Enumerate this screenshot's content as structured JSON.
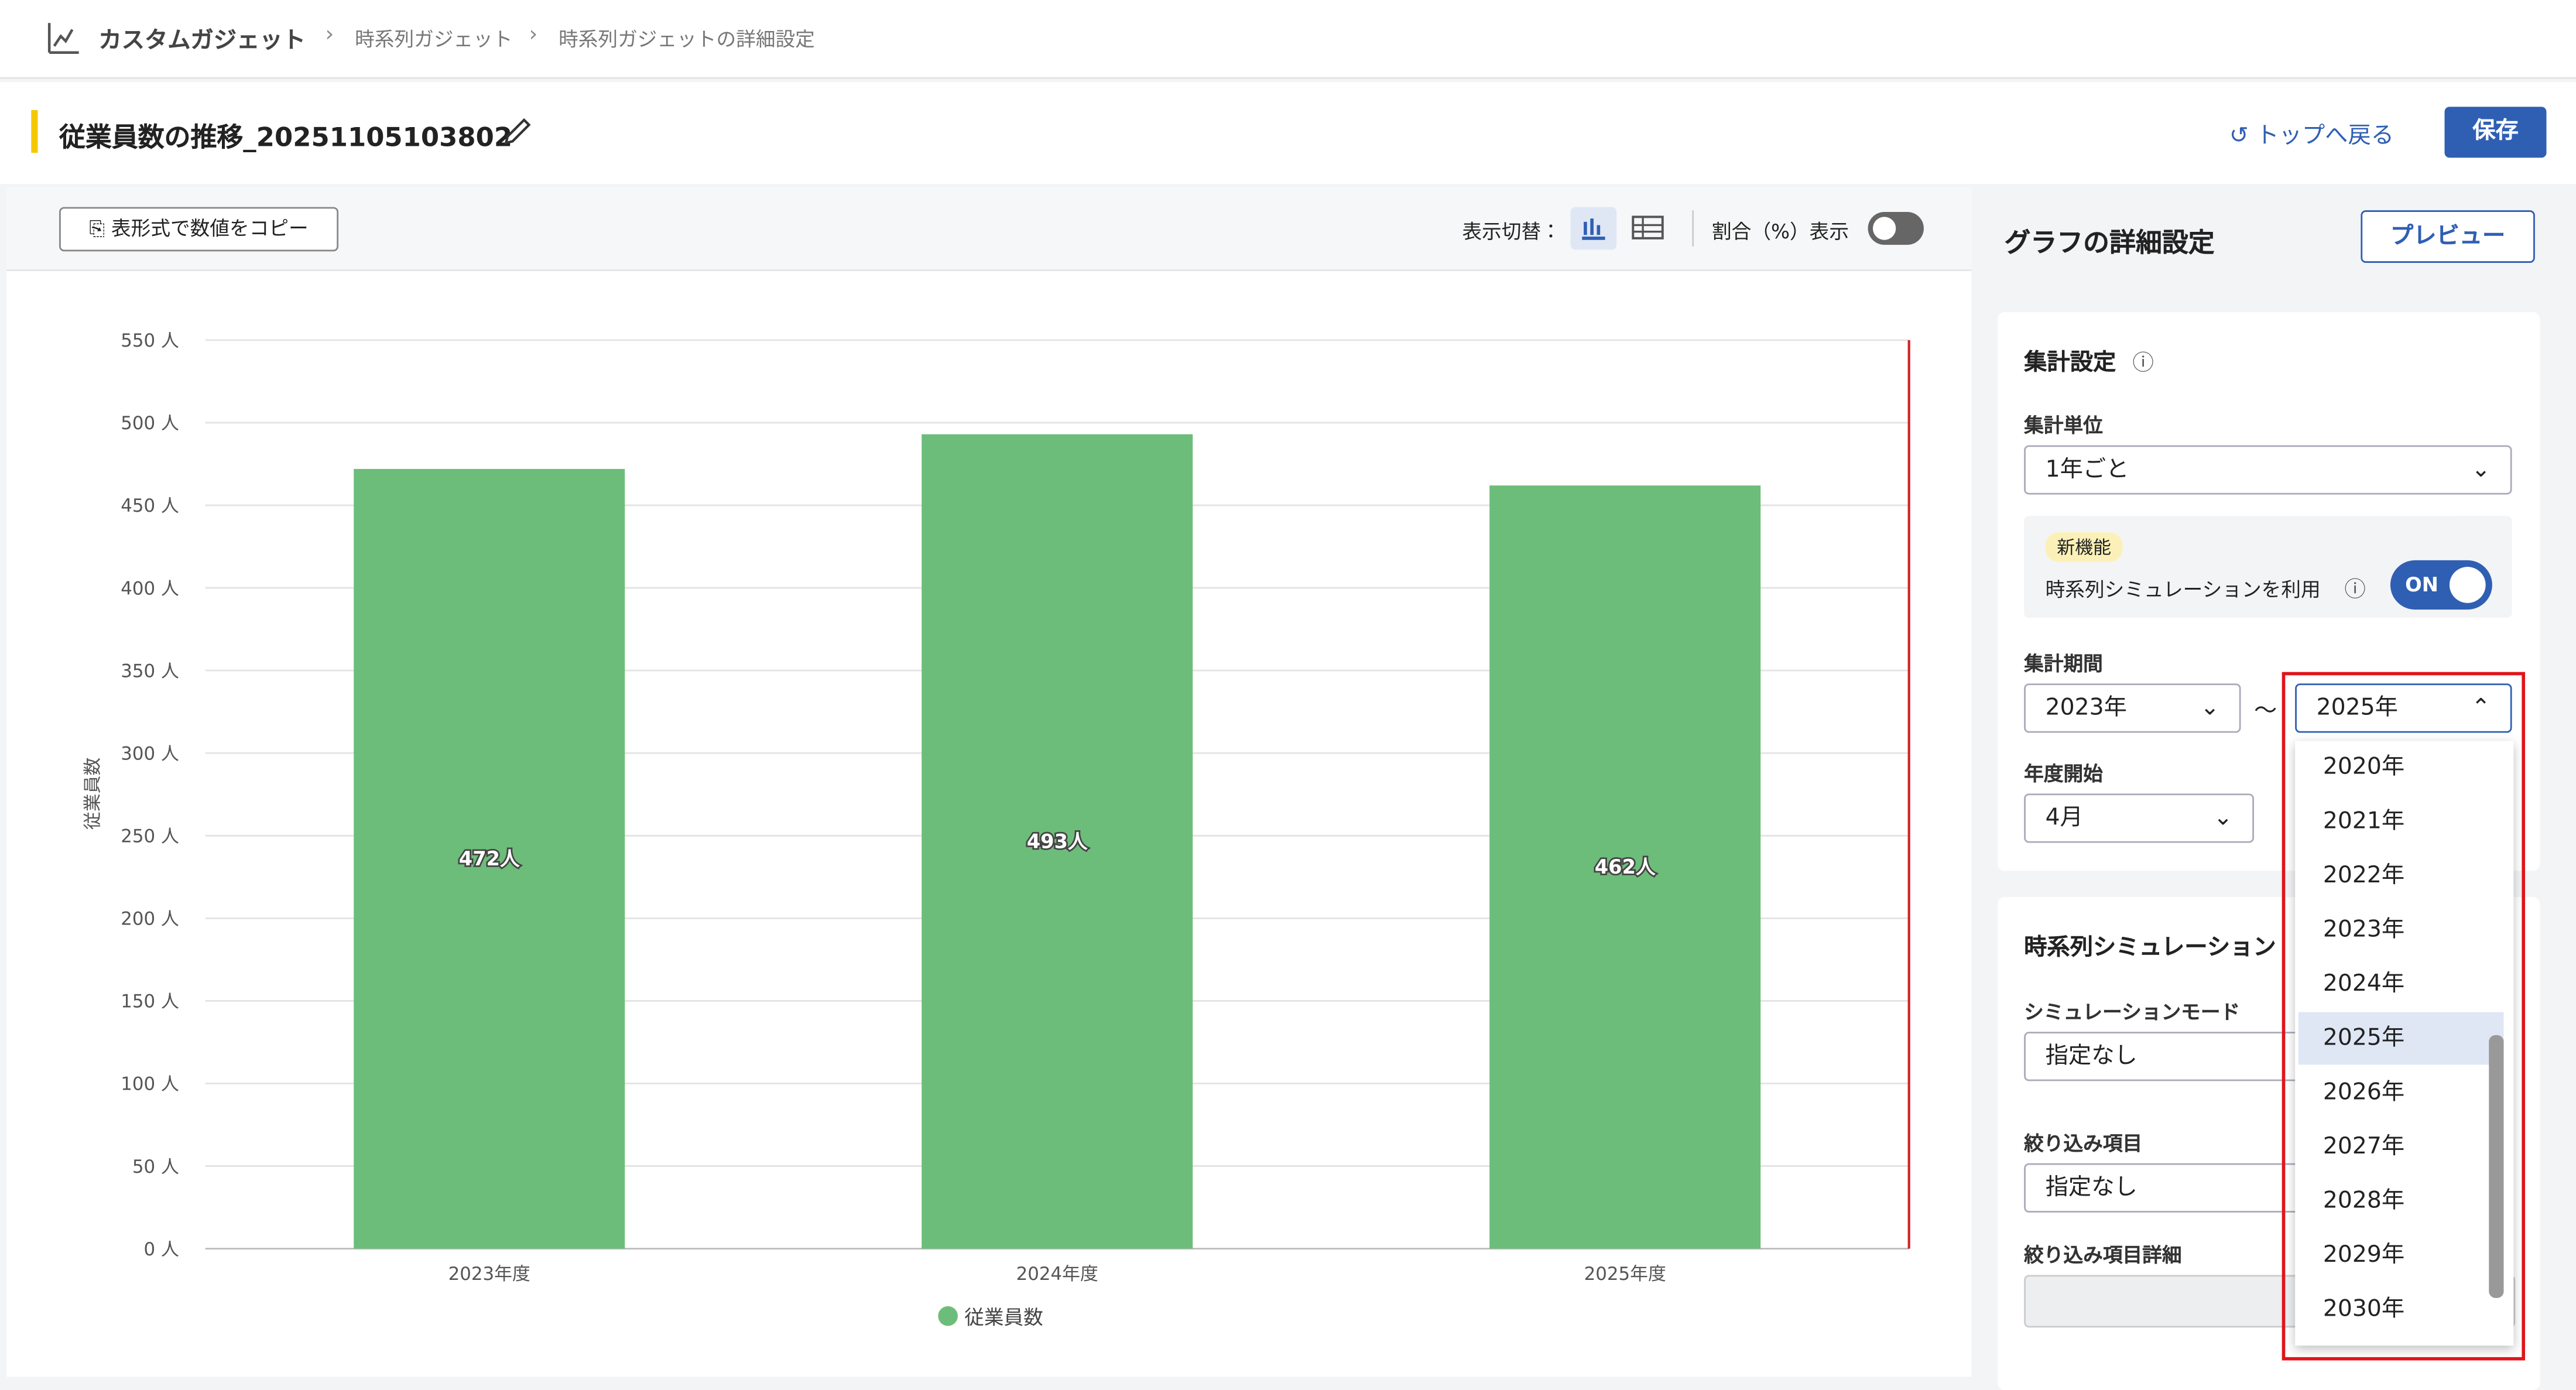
{
  "breadcrumb": [
    "カスタムガジェット",
    "時系列ガジェット",
    "時系列ガジェットの詳細設定"
  ],
  "header": {
    "title": "従業員数の推移_20251105103802",
    "back": "トップへ戻る",
    "save": "保存"
  },
  "toolbar": {
    "copy": "表形式で数値をコピー",
    "switch": "表示切替：",
    "ratio": "割合（%）表示"
  },
  "panel": {
    "title": "グラフの詳細設定",
    "preview": "プレビュー",
    "section": "集計設定",
    "unit_label": "集計単位",
    "unit": "1年ごと",
    "new_badge": "新機能",
    "simulation": "時系列シミュレーションを利用",
    "toggle": "ON",
    "period_label": "集計期間",
    "period_start": "2023年",
    "tilde": "～",
    "period_end": "2025年",
    "fy_label": "年度開始",
    "fy": "4月",
    "section2": "時系列シミュレーション",
    "mode_label": "シミュレーションモード",
    "mode": "指定なし",
    "filter_label": "絞り込み項目",
    "filter": "指定なし",
    "filter_detail_label": "絞り込み項目詳細"
  },
  "dropdown": [
    "2020年",
    "2021年",
    "2022年",
    "2023年",
    "2024年",
    "2025年",
    "2026年",
    "2027年",
    "2028年",
    "2029年",
    "2030年"
  ],
  "chart_data": {
    "type": "bar",
    "y_label": "従業員数",
    "categories": [
      "2023年度",
      "2024年度",
      "2025年度"
    ],
    "series": [
      {
        "name": "従業員数",
        "color": "#6dbd7a",
        "values": [
          472,
          493,
          462
        ],
        "value_labels": [
          "472人",
          "493人",
          "462人"
        ]
      }
    ],
    "ylim": [
      0,
      550
    ],
    "yticks": [
      {
        "value": 0,
        "label": "0 人"
      },
      {
        "value": 50,
        "label": "50 人"
      },
      {
        "value": 100,
        "label": "100 人"
      },
      {
        "value": 150,
        "label": "150 人"
      },
      {
        "value": 200,
        "label": "200 人"
      },
      {
        "value": 250,
        "label": "250 人"
      },
      {
        "value": 300,
        "label": "300 人"
      },
      {
        "value": 350,
        "label": "350 人"
      },
      {
        "value": 400,
        "label": "400 人"
      },
      {
        "value": 450,
        "label": "450 人"
      },
      {
        "value": 500,
        "label": "500 人"
      },
      {
        "value": 550,
        "label": "550 人"
      }
    ],
    "grid": true
  }
}
